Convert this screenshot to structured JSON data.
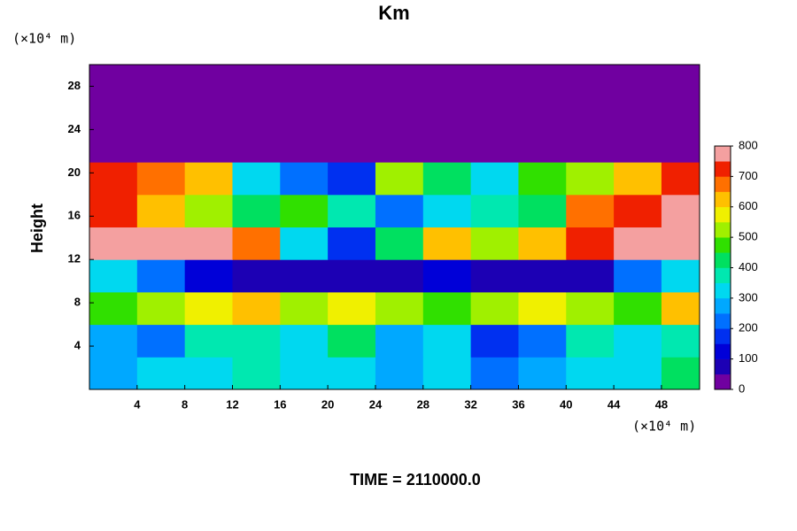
{
  "chart_data": {
    "type": "heatmap",
    "title": "Km",
    "y_label": "Height",
    "y_unit": "(×10⁴ m)",
    "x_unit": "(×10⁴ m)",
    "footer": "TIME = 2110000.0",
    "x": [
      2,
      6,
      10,
      14,
      18,
      22,
      26,
      30,
      34,
      38,
      42,
      46,
      50
    ],
    "y": [
      1.5,
      4.5,
      7.5,
      10.5,
      13.5,
      16.5,
      19.5,
      22.5,
      25.5,
      28.5
    ],
    "z": [
      [
        280,
        300,
        320,
        350,
        330,
        300,
        280,
        320,
        200,
        250,
        300,
        330,
        400
      ],
      [
        250,
        220,
        350,
        380,
        300,
        420,
        260,
        300,
        150,
        200,
        350,
        300,
        350
      ],
      [
        450,
        500,
        550,
        600,
        500,
        550,
        500,
        450,
        500,
        550,
        500,
        450,
        600
      ],
      [
        300,
        200,
        100,
        50,
        50,
        50,
        50,
        100,
        50,
        50,
        50,
        200,
        300
      ],
      [
        800,
        800,
        750,
        650,
        300,
        150,
        400,
        600,
        500,
        600,
        700,
        750,
        800
      ],
      [
        700,
        600,
        500,
        400,
        450,
        350,
        200,
        300,
        350,
        400,
        650,
        700,
        800
      ],
      [
        700,
        650,
        600,
        300,
        200,
        150,
        500,
        400,
        300,
        450,
        500,
        600,
        700
      ],
      [
        0,
        0,
        0,
        0,
        0,
        0,
        0,
        0,
        0,
        0,
        0,
        0,
        0
      ],
      [
        0,
        0,
        0,
        0,
        0,
        0,
        0,
        0,
        0,
        0,
        0,
        0,
        0
      ],
      [
        0,
        0,
        0,
        0,
        0,
        0,
        0,
        0,
        0,
        0,
        0,
        0,
        0
      ]
    ],
    "cell_size": [
      4,
      3
    ],
    "xlim": [
      0,
      51.2
    ],
    "ylim": [
      0,
      30
    ],
    "xticks": [
      4,
      8,
      12,
      16,
      20,
      24,
      28,
      32,
      36,
      40,
      44,
      48
    ],
    "yticks": [
      4,
      8,
      12,
      16,
      20,
      24,
      28
    ],
    "colorbar": {
      "lim": [
        0,
        800
      ],
      "ticks": [
        0,
        100,
        200,
        300,
        400,
        500,
        600,
        700,
        800
      ],
      "colors": [
        "#7000a0",
        "#1c00b4",
        "#0000d8",
        "#0030f0",
        "#0070ff",
        "#00a8ff",
        "#00d8f0",
        "#00e8b0",
        "#00e060",
        "#30e000",
        "#a0f000",
        "#f0f000",
        "#ffc000",
        "#ff7000",
        "#f02000",
        "#f4a0a0"
      ]
    }
  }
}
